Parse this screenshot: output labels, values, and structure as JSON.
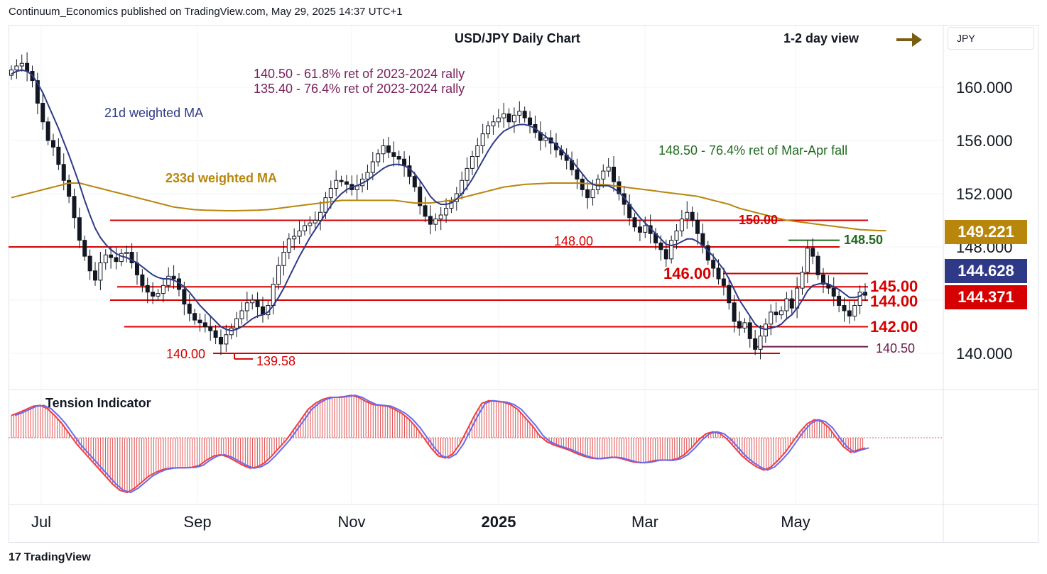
{
  "header": {
    "publisher_line": "Continuum_Economics published on TradingView.com, May 29, 2025 14:37 UTC+1"
  },
  "currency_selector": "JPY",
  "footer": {
    "brand": "TradingView",
    "brand_mark": "17"
  },
  "chart_data": {
    "type": "candlestick",
    "title": "USD/JPY Daily Chart",
    "view_label": "1-2 day view",
    "view_arrow": "right-arrow-icon",
    "y_ticks": [
      "160.000",
      "156.000",
      "152.000",
      "148.000",
      "140.000"
    ],
    "ylim": [
      136.0,
      163.0
    ],
    "x_ticks": [
      {
        "label": "Jul",
        "bold": false
      },
      {
        "label": "Sep",
        "bold": false
      },
      {
        "label": "Nov",
        "bold": false
      },
      {
        "label": "2025",
        "bold": true
      },
      {
        "label": "Mar",
        "bold": false
      },
      {
        "label": "May",
        "bold": false
      }
    ],
    "price_tags": [
      {
        "value": "149.221",
        "color": "#b8860b"
      },
      {
        "value": "144.628",
        "color": "#2e3a87"
      },
      {
        "value": "144.371",
        "color": "#d60000"
      }
    ],
    "annotations": {
      "retracement_1": "140.50 - 61.8% ret of 2023-2024 rally",
      "retracement_2": "135.40 - 76.4% ret of 2023-2024 rally",
      "ma21_label": "21d weighted MA",
      "ma233_label": "233d weighted MA",
      "mar_apr_label": "148.50 - 76.4% ret of Mar-Apr fall",
      "tension_label": "Tension Indicator"
    },
    "levels": [
      {
        "price": 150.0,
        "label": "150.00",
        "color": "#d60000"
      },
      {
        "price": 148.5,
        "label": "148.50",
        "color": "#1e6b1e"
      },
      {
        "price": 148.0,
        "label": "148.00",
        "color": "#d60000"
      },
      {
        "price": 146.0,
        "label": "146.00",
        "color": "#d60000"
      },
      {
        "price": 145.0,
        "label": "145.00",
        "color": "#d60000"
      },
      {
        "price": 144.0,
        "label": "144.00",
        "color": "#d60000"
      },
      {
        "price": 142.0,
        "label": "142.00",
        "color": "#d60000"
      },
      {
        "price": 140.5,
        "label": "140.50",
        "color": "#6b1a4b"
      },
      {
        "price": 140.0,
        "label": "140.00",
        "color": "#d60000"
      },
      {
        "price": 139.58,
        "label": "139.58",
        "color": "#d60000"
      }
    ],
    "series_close": [
      161.3,
      161.6,
      161.8,
      161.2,
      160.5,
      158.8,
      157.4,
      156.0,
      155.5,
      154.2,
      153.0,
      151.8,
      150.2,
      148.5,
      147.3,
      146.2,
      145.5,
      146.8,
      147.4,
      147.2,
      146.9,
      147.5,
      147.6,
      146.8,
      145.9,
      145.1,
      144.6,
      144.3,
      144.5,
      145.1,
      145.8,
      145.6,
      144.8,
      143.7,
      143.0,
      142.5,
      142.3,
      142.0,
      141.7,
      141.2,
      140.7,
      141.4,
      141.9,
      142.6,
      143.2,
      143.8,
      144.0,
      143.5,
      142.9,
      143.6,
      145.2,
      146.6,
      147.6,
      148.6,
      148.8,
      149.2,
      149.6,
      149.8,
      150.0,
      150.6,
      151.7,
      152.4,
      153.0,
      152.9,
      152.7,
      152.3,
      152.6,
      153.1,
      153.6,
      154.4,
      155.0,
      155.6,
      155.1,
      154.8,
      154.6,
      154.1,
      153.3,
      152.5,
      151.1,
      150.3,
      149.7,
      150.1,
      150.4,
      150.9,
      151.4,
      152.0,
      153.0,
      153.9,
      154.8,
      155.6,
      156.5,
      157.1,
      157.4,
      157.7,
      158.0,
      157.4,
      157.9,
      158.2,
      157.7,
      157.2,
      156.6,
      156.0,
      156.2,
      155.8,
      155.3,
      154.9,
      154.5,
      153.8,
      153.1,
      152.3,
      151.7,
      152.3,
      153.1,
      153.7,
      154.0,
      152.9,
      152.0,
      151.2,
      150.2,
      149.5,
      149.1,
      149.6,
      149.0,
      148.3,
      147.8,
      147.1,
      148.5,
      149.2,
      150.1,
      150.6,
      150.0,
      149.0,
      148.1,
      147.0,
      146.4,
      145.6,
      145.1,
      143.8,
      142.4,
      141.9,
      142.3,
      141.1,
      140.3,
      141.3,
      142.2,
      143.1,
      142.9,
      143.2,
      144.1,
      143.4,
      144.9,
      146.1,
      147.9,
      147.3,
      145.9,
      145.2,
      144.9,
      144.3,
      143.6,
      143.2,
      142.8,
      143.6,
      144.6,
      144.37
    ],
    "ma21": [
      161.0,
      161.2,
      161.3,
      161.2,
      160.9,
      160.3,
      159.6,
      158.7,
      157.8,
      156.9,
      155.9,
      154.9,
      153.8,
      152.7,
      151.5,
      150.4,
      149.4,
      148.7,
      148.2,
      147.8,
      147.5,
      147.3,
      147.2,
      147.0,
      146.8,
      146.5,
      146.2,
      145.9,
      145.7,
      145.6,
      145.6,
      145.5,
      145.3,
      145.0,
      144.6,
      144.1,
      143.6,
      143.2,
      142.8,
      142.4,
      142.0,
      141.8,
      141.7,
      141.8,
      142.0,
      142.3,
      142.6,
      142.8,
      142.9,
      143.1,
      143.6,
      144.2,
      144.9,
      145.7,
      146.5,
      147.3,
      148.0,
      148.7,
      149.3,
      149.9,
      150.5,
      151.1,
      151.6,
      152.0,
      152.3,
      152.5,
      152.6,
      152.8,
      153.0,
      153.3,
      153.6,
      153.9,
      154.1,
      154.2,
      154.2,
      154.1,
      153.9,
      153.5,
      153.0,
      152.4,
      151.8,
      151.4,
      151.2,
      151.2,
      151.3,
      151.6,
      152.0,
      152.5,
      153.1,
      153.8,
      154.5,
      155.2,
      155.8,
      156.3,
      156.7,
      156.9,
      157.1,
      157.2,
      157.2,
      157.1,
      156.9,
      156.6,
      156.3,
      156.0,
      155.7,
      155.3,
      154.9,
      154.5,
      154.0,
      153.5,
      153.0,
      152.7,
      152.6,
      152.6,
      152.6,
      152.4,
      152.1,
      151.7,
      151.2,
      150.7,
      150.2,
      149.8,
      149.4,
      149.0,
      148.6,
      148.2,
      148.1,
      148.2,
      148.4,
      148.6,
      148.6,
      148.4,
      148.1,
      147.7,
      147.3,
      146.8,
      146.3,
      145.6,
      144.8,
      144.0,
      143.4,
      142.8,
      142.2,
      141.9,
      141.8,
      141.9,
      142.0,
      142.2,
      142.6,
      142.9,
      143.4,
      144.0,
      144.7,
      145.1,
      145.2,
      145.3,
      145.2,
      145.0,
      144.8,
      144.5,
      144.2,
      144.2,
      144.3,
      144.6
    ],
    "ma233": [
      151.7,
      151.8,
      151.9,
      152.0,
      152.1,
      152.2,
      152.3,
      152.4,
      152.5,
      152.6,
      152.7,
      152.8,
      152.8,
      152.8,
      152.7,
      152.6,
      152.5,
      152.4,
      152.3,
      152.2,
      152.1,
      152.0,
      151.9,
      151.8,
      151.7,
      151.6,
      151.5,
      151.4,
      151.3,
      151.2,
      151.1,
      151.0,
      150.95,
      150.9,
      150.85,
      150.8,
      150.78,
      150.76,
      150.75,
      150.74,
      150.73,
      150.72,
      150.72,
      150.72,
      150.73,
      150.74,
      150.75,
      150.76,
      150.78,
      150.8,
      150.85,
      150.9,
      150.95,
      151.0,
      151.05,
      151.1,
      151.15,
      151.2,
      151.25,
      151.3,
      151.35,
      151.4,
      151.45,
      151.5,
      151.5,
      151.5,
      151.5,
      151.5,
      151.5,
      151.5,
      151.5,
      151.5,
      151.5,
      151.5,
      151.45,
      151.4,
      151.35,
      151.3,
      151.3,
      151.3,
      151.3,
      151.35,
      151.4,
      151.45,
      151.5,
      151.6,
      151.7,
      151.8,
      151.9,
      152.0,
      152.1,
      152.2,
      152.3,
      152.4,
      152.5,
      152.55,
      152.6,
      152.65,
      152.7,
      152.72,
      152.74,
      152.76,
      152.78,
      152.8,
      152.8,
      152.8,
      152.8,
      152.8,
      152.8,
      152.78,
      152.75,
      152.72,
      152.7,
      152.68,
      152.66,
      152.6,
      152.55,
      152.5,
      152.45,
      152.4,
      152.35,
      152.3,
      152.25,
      152.2,
      152.15,
      152.1,
      152.05,
      152.0,
      151.95,
      151.9,
      151.85,
      151.8,
      151.7,
      151.6,
      151.5,
      151.4,
      151.3,
      151.2,
      151.05,
      150.9,
      150.8,
      150.7,
      150.6,
      150.5,
      150.4,
      150.3,
      150.2,
      150.1,
      150.0,
      149.95,
      149.9,
      149.85,
      149.8,
      149.75,
      149.7,
      149.65,
      149.6,
      149.55,
      149.5,
      149.45,
      149.4,
      149.35,
      149.3,
      149.28,
      149.26,
      149.24,
      149.22,
      149.221
    ],
    "tension": [
      0.55,
      0.62,
      0.7,
      0.78,
      0.8,
      0.72,
      0.55,
      0.35,
      0.1,
      -0.15,
      -0.35,
      -0.55,
      -0.75,
      -0.95,
      -1.15,
      -1.3,
      -1.35,
      -1.25,
      -1.1,
      -0.95,
      -0.85,
      -0.78,
      -0.75,
      -0.74,
      -0.74,
      -0.73,
      -0.68,
      -0.55,
      -0.45,
      -0.42,
      -0.48,
      -0.58,
      -0.68,
      -0.75,
      -0.72,
      -0.62,
      -0.45,
      -0.25,
      -0.05,
      0.2,
      0.45,
      0.7,
      0.85,
      0.95,
      1.0,
      1.0,
      1.02,
      1.05,
      1.0,
      0.9,
      0.82,
      0.8,
      0.78,
      0.7,
      0.6,
      0.45,
      0.25,
      0.0,
      -0.25,
      -0.45,
      -0.5,
      -0.4,
      -0.15,
      0.2,
      0.55,
      0.85,
      0.92,
      0.9,
      0.88,
      0.82,
      0.7,
      0.5,
      0.3,
      0.05,
      -0.1,
      -0.18,
      -0.24,
      -0.3,
      -0.38,
      -0.45,
      -0.5,
      -0.52,
      -0.5,
      -0.48,
      -0.5,
      -0.55,
      -0.6,
      -0.62,
      -0.6,
      -0.56,
      -0.55,
      -0.56,
      -0.52,
      -0.42,
      -0.25,
      -0.05,
      0.1,
      0.15,
      0.1,
      -0.05,
      -0.25,
      -0.45,
      -0.6,
      -0.72,
      -0.8,
      -0.72,
      -0.55,
      -0.35,
      -0.1,
      0.15,
      0.35,
      0.45,
      0.4,
      0.25,
      0.0,
      -0.22,
      -0.36,
      -0.3,
      -0.25
    ]
  }
}
